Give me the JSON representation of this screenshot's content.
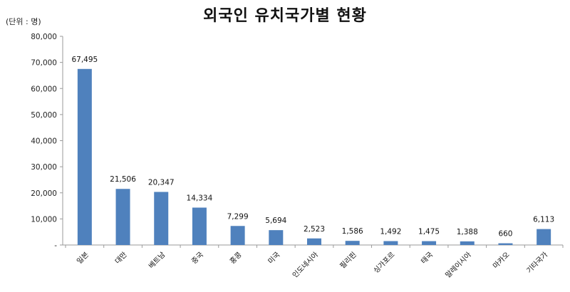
{
  "chart_data": {
    "type": "bar",
    "title": "외국인 유치국가별 현황",
    "unit": "(단위 : 명)",
    "categories": [
      "일본",
      "대만",
      "베트남",
      "중국",
      "홍콩",
      "미국",
      "인도네시아",
      "필리핀",
      "싱가포르",
      "태국",
      "말레이시아",
      "마카오",
      "기타국가"
    ],
    "values": [
      67495,
      21506,
      20347,
      14334,
      7299,
      5694,
      2523,
      1586,
      1492,
      1475,
      1388,
      660,
      6113
    ],
    "value_labels": [
      "67,495",
      "21,506",
      "20,347",
      "14,334",
      "7,299",
      "5,694",
      "2,523",
      "1,586",
      "1,492",
      "1,475",
      "1,388",
      "660",
      "6,113"
    ],
    "yticks": [
      0,
      10000,
      20000,
      30000,
      40000,
      50000,
      60000,
      70000,
      80000
    ],
    "ytick_labels": [
      "-",
      "10,000",
      "20,000",
      "30,000",
      "40,000",
      "50,000",
      "60,000",
      "70,000",
      "80,000"
    ],
    "ylim": [
      0,
      80000
    ],
    "bar_color": "#4F81BD",
    "grid": false,
    "legend": "none"
  }
}
